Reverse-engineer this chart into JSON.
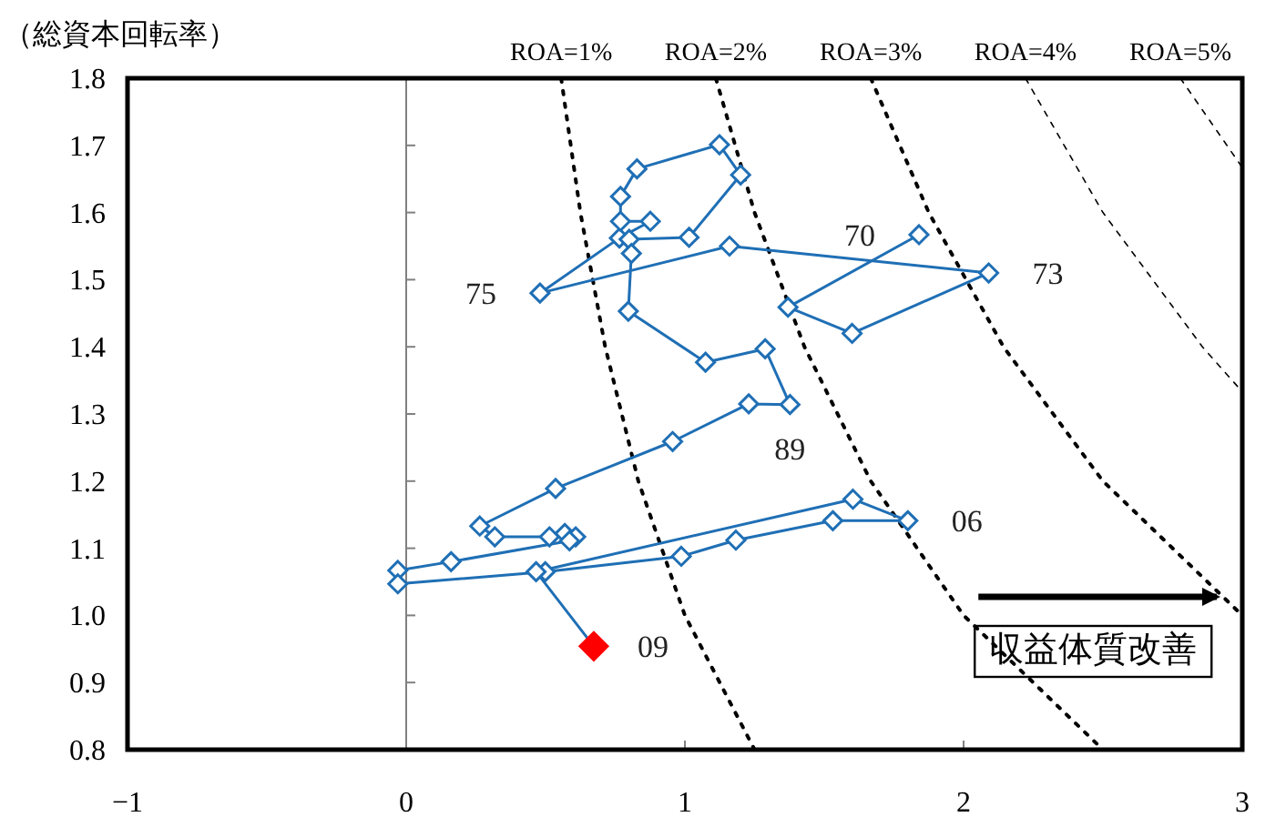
{
  "chart_data": {
    "type": "line",
    "ylabel": "（総資本回転率）",
    "xlim": [
      -1,
      3
    ],
    "ylim": [
      0.8,
      1.8
    ],
    "xticks": [
      {
        "value": -1,
        "label": "−1"
      },
      0,
      1,
      2,
      3
    ],
    "yticks": [
      0.8,
      0.9,
      {
        "value": 1,
        "label": "1.0"
      },
      1.1,
      1.2,
      1.3,
      1.4,
      1.5,
      1.6,
      1.7,
      1.8
    ],
    "grid": false,
    "ref_lines": [
      {
        "axis": "x",
        "value": 0,
        "color": "#808080"
      }
    ],
    "series": [
      {
        "name": "ROA=1%",
        "color": "#000000",
        "line_style": "dotted",
        "marker": "none",
        "x": [
          0.556,
          0.625,
          0.714,
          0.833,
          1.0,
          1.25
        ],
        "values": [
          1.8,
          1.6,
          1.4,
          1.2,
          1.0,
          0.8
        ]
      },
      {
        "name": "ROA=2%",
        "color": "#000000",
        "line_style": "dotted",
        "marker": "none",
        "x": [
          1.111,
          1.25,
          1.429,
          1.667,
          2.0,
          2.5
        ],
        "values": [
          1.8,
          1.6,
          1.4,
          1.2,
          1.0,
          0.8
        ]
      },
      {
        "name": "ROA=3%",
        "color": "#000000",
        "line_style": "dotted",
        "marker": "none",
        "x": [
          1.667,
          1.875,
          2.143,
          2.5,
          3.0
        ],
        "values": [
          1.8,
          1.6,
          1.4,
          1.2,
          1.0
        ]
      },
      {
        "name": "ROA=4%",
        "color": "#000000",
        "line_style": "dashed",
        "marker": "none",
        "x": [
          2.222,
          2.5,
          2.857,
          3.0
        ],
        "values": [
          1.8,
          1.6,
          1.4,
          1.333
        ]
      },
      {
        "name": "ROA=5%",
        "color": "#000000",
        "line_style": "dashed",
        "marker": "none",
        "x": [
          2.778,
          3.0
        ],
        "values": [
          1.8,
          1.667
        ]
      },
      {
        "color": "#1f6fb5",
        "line_style": "solid",
        "marker": "diamond",
        "x": [
          1.84,
          1.37,
          1.6,
          2.09,
          1.16,
          0.48,
          0.765,
          0.876,
          0.769,
          0.769,
          0.828,
          1.124,
          1.2,
          1.015,
          0.8,
          0.808,
          0.797,
          1.074,
          1.288,
          1.377,
          1.229,
          0.956,
          0.536,
          0.264,
          0.318,
          0.514,
          0.569,
          0.608,
          0.586,
          0.161,
          -0.03,
          -0.03,
          0.499,
          0.987,
          1.183,
          1.531,
          1.8,
          1.603,
          0.466,
          0.673
        ],
        "values": [
          1.567,
          1.459,
          1.42,
          1.51,
          1.55,
          1.48,
          1.562,
          1.587,
          1.587,
          1.624,
          1.665,
          1.701,
          1.656,
          1.563,
          1.56,
          1.539,
          1.453,
          1.377,
          1.397,
          1.314,
          1.315,
          1.259,
          1.189,
          1.133,
          1.117,
          1.117,
          1.122,
          1.117,
          1.111,
          1.08,
          1.067,
          1.047,
          1.065,
          1.088,
          1.112,
          1.141,
          1.141,
          1.173,
          1.065,
          0.954
        ],
        "colors": [
          "#1f6fb5",
          "#1f6fb5",
          "#1f6fb5",
          "#1f6fb5",
          "#1f6fb5",
          "#1f6fb5",
          "#1f6fb5",
          "#1f6fb5",
          "#1f6fb5",
          "#1f6fb5",
          "#1f6fb5",
          "#1f6fb5",
          "#1f6fb5",
          "#1f6fb5",
          "#1f6fb5",
          "#1f6fb5",
          "#1f6fb5",
          "#1f6fb5",
          "#1f6fb5",
          "#1f6fb5",
          "#1f6fb5",
          "#1f6fb5",
          "#1f6fb5",
          "#1f6fb5",
          "#1f6fb5",
          "#1f6fb5",
          "#1f6fb5",
          "#1f6fb5",
          "#1f6fb5",
          "#1f6fb5",
          "#1f6fb5",
          "#1f6fb5",
          "#1f6fb5",
          "#1f6fb5",
          "#1f6fb5",
          "#1f6fb5",
          "#1f6fb5",
          "#1f6fb5",
          "#1f6fb5",
          "#ff0000"
        ]
      }
    ],
    "annotations": [
      {
        "text": "70",
        "x": 1.84,
        "y": 1.567
      },
      {
        "text": "73",
        "x": 2.09,
        "y": 1.51
      },
      {
        "text": "75",
        "x": 0.48,
        "y": 1.48
      },
      {
        "text": "89",
        "x": 1.377,
        "y": 1.314
      },
      {
        "text": "06",
        "x": 1.8,
        "y": 1.141
      },
      {
        "text": "09",
        "x": 0.673,
        "y": 0.954
      },
      "収益体質改善"
    ]
  }
}
